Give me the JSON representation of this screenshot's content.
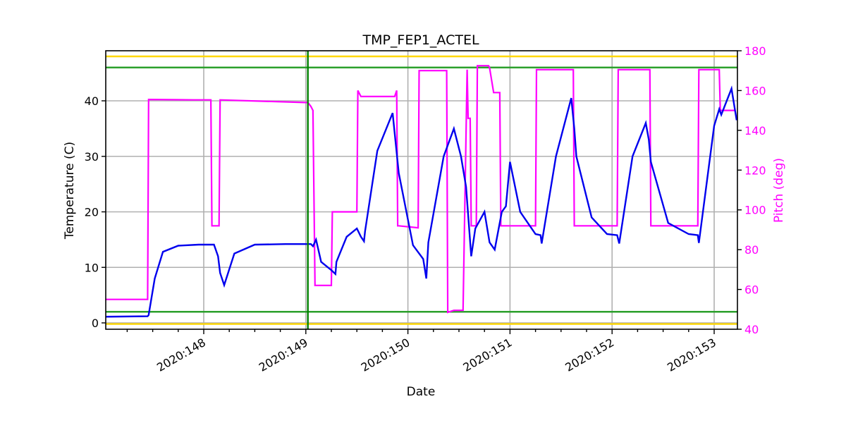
{
  "chart_data": {
    "type": "line",
    "title": "TMP_FEP1_ACTEL",
    "xlabel": "Date",
    "ylabel": "Temperature (C)",
    "y2label": "Pitch (deg)",
    "xlim": [
      147.0,
      153.22
    ],
    "ylim": [
      -1.1,
      48.9
    ],
    "y2lim": [
      40,
      180
    ],
    "x_ticks": [
      148,
      149,
      150,
      151,
      152,
      153
    ],
    "x_tick_labels": [
      "2020:148",
      "2020:149",
      "2020:150",
      "2020:151",
      "2020:152",
      "2020:153"
    ],
    "y_ticks": [
      0,
      10,
      20,
      30,
      40
    ],
    "y_tick_labels": [
      "0",
      "10",
      "20",
      "30",
      "40"
    ],
    "y2_ticks": [
      40,
      60,
      80,
      100,
      120,
      140,
      160,
      180
    ],
    "y2_tick_labels": [
      "40",
      "60",
      "80",
      "100",
      "120",
      "140",
      "160",
      "180"
    ],
    "grid": true,
    "colors": {
      "temperature": "#0000ee",
      "pitch": "#ff00ff",
      "yellow_limit": "#ffd700",
      "green_limit": "#2ca02c",
      "now_line": "#008000",
      "grid": "#b0b0b0",
      "right_axis_text": "#ff00ff"
    },
    "hlines": [
      {
        "name": "yellow-high",
        "y": 48.0,
        "color": "#ffd700"
      },
      {
        "name": "planning-high",
        "y": 46.0,
        "color": "#2ca02c"
      },
      {
        "name": "planning-low",
        "y": 2.0,
        "color": "#2ca02c"
      },
      {
        "name": "yellow-low",
        "y": -0.2,
        "color": "#ffd700"
      }
    ],
    "vline": {
      "name": "now-line",
      "x": 149.02,
      "color": "#008000"
    },
    "series": [
      {
        "name": "Temperature",
        "axis": "left",
        "color": "#0000ee",
        "x": [
          147.0,
          147.45,
          147.46,
          147.52,
          147.6,
          147.75,
          147.95,
          148.1,
          148.14,
          148.16,
          148.2,
          148.3,
          148.5,
          148.8,
          149.05,
          149.07,
          149.1,
          149.15,
          149.25,
          149.29,
          149.3,
          149.4,
          149.5,
          149.54,
          149.57,
          149.58,
          149.7,
          149.85,
          149.91,
          150.05,
          150.15,
          150.18,
          150.2,
          150.35,
          150.45,
          150.52,
          150.57,
          150.62,
          150.66,
          150.75,
          150.8,
          150.85,
          150.92,
          150.96,
          151.0,
          151.1,
          151.25,
          151.3,
          151.31,
          151.45,
          151.6,
          151.63,
          151.65,
          151.8,
          151.95,
          152.05,
          152.07,
          152.2,
          152.33,
          152.36,
          152.38,
          152.55,
          152.75,
          152.84,
          152.85,
          153.0,
          153.05,
          153.07,
          153.17,
          153.22
        ],
        "values": [
          1.1,
          1.2,
          1.4,
          8.0,
          12.8,
          13.9,
          14.1,
          14.1,
          12.0,
          9.0,
          6.8,
          12.5,
          14.1,
          14.2,
          14.2,
          13.8,
          15.0,
          11.0,
          9.5,
          8.8,
          11.0,
          15.5,
          17.0,
          15.5,
          14.7,
          16.5,
          31.0,
          37.8,
          27.0,
          14.0,
          11.5,
          8.0,
          14.5,
          30.0,
          35.0,
          30.0,
          24.5,
          12.0,
          17.0,
          20.0,
          14.5,
          13.2,
          20.0,
          21.0,
          29.0,
          20.0,
          16.0,
          15.8,
          14.3,
          30.0,
          40.5,
          35.0,
          30.0,
          19.0,
          16.0,
          15.8,
          14.3,
          30.0,
          36.0,
          33.0,
          29.0,
          18.0,
          16.0,
          15.8,
          14.4,
          35.5,
          38.5,
          37.5,
          42.2,
          36.5
        ]
      },
      {
        "name": "Pitch",
        "axis": "right",
        "color": "#ff00ff",
        "x": [
          147.0,
          147.44,
          147.45,
          147.46,
          147.9,
          148.07,
          148.08,
          148.15,
          148.16,
          148.99,
          149.02,
          149.05,
          149.07,
          149.09,
          149.25,
          149.26,
          149.5,
          149.51,
          149.53,
          149.54,
          149.87,
          149.89,
          149.9,
          149.91,
          150.1,
          150.11,
          150.12,
          150.38,
          150.39,
          150.45,
          150.54,
          150.58,
          150.59,
          150.61,
          150.62,
          150.67,
          150.68,
          150.79,
          150.8,
          150.84,
          150.85,
          150.9,
          150.91,
          151.25,
          151.26,
          151.62,
          151.63,
          152.05,
          152.06,
          152.37,
          152.38,
          152.84,
          152.85,
          153.05,
          153.06,
          153.2
        ],
        "values": [
          55,
          55,
          55,
          155.5,
          155.3,
          155.3,
          92,
          92,
          155.3,
          154.0,
          154.0,
          152,
          150,
          62,
          62,
          99,
          99,
          160,
          158,
          157,
          157,
          160,
          92,
          92,
          91,
          170,
          170,
          170,
          48.5,
          49.5,
          49.5,
          170.5,
          146,
          146,
          92,
          92,
          172.5,
          172.5,
          171.5,
          159,
          159,
          159,
          92,
          92,
          170.5,
          170.5,
          92,
          92,
          170.5,
          170.5,
          92,
          92,
          170.5,
          170.5,
          150,
          150
        ]
      }
    ]
  }
}
